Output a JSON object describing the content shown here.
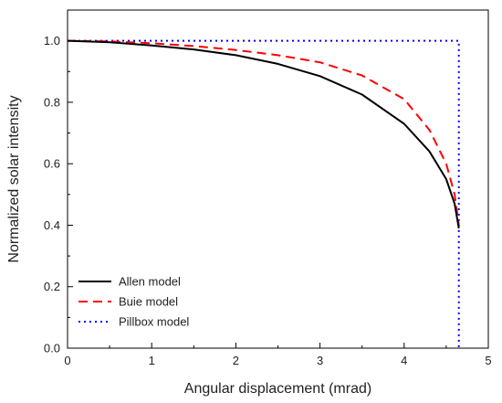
{
  "chart_data": {
    "type": "line",
    "xlabel": "Angular displacement (mrad)",
    "ylabel": "Normalized solar intensity",
    "xlim": [
      0,
      5
    ],
    "ylim": [
      0,
      1.1
    ],
    "x_ticks": [
      "0",
      "1",
      "2",
      "3",
      "4",
      "5"
    ],
    "y_ticks": [
      "0.0",
      "0.2",
      "0.4",
      "0.6",
      "0.8",
      "1.0"
    ],
    "grid": false,
    "legend_position": "bottom-left",
    "series": [
      {
        "name": "Allen model",
        "color": "#000000",
        "style": "solid",
        "x": [
          0,
          0.5,
          1.0,
          1.5,
          2.0,
          2.5,
          3.0,
          3.5,
          4.0,
          4.3,
          4.5,
          4.6,
          4.65
        ],
        "y": [
          1.0,
          0.995,
          0.985,
          0.972,
          0.953,
          0.925,
          0.885,
          0.825,
          0.73,
          0.64,
          0.55,
          0.47,
          0.39
        ]
      },
      {
        "name": "Buie model",
        "color": "#ff0000",
        "style": "dashed",
        "x": [
          0,
          0.5,
          1.0,
          1.5,
          2.0,
          2.5,
          3.0,
          3.5,
          4.0,
          4.3,
          4.5,
          4.6,
          4.65
        ],
        "y": [
          1.0,
          0.998,
          0.992,
          0.983,
          0.97,
          0.953,
          0.93,
          0.887,
          0.81,
          0.71,
          0.6,
          0.5,
          0.4
        ]
      },
      {
        "name": "Pillbox model",
        "color": "#0000ff",
        "style": "dotted",
        "x": [
          0,
          4.65,
          4.65
        ],
        "y": [
          1.0,
          1.0,
          0.0
        ]
      }
    ]
  }
}
